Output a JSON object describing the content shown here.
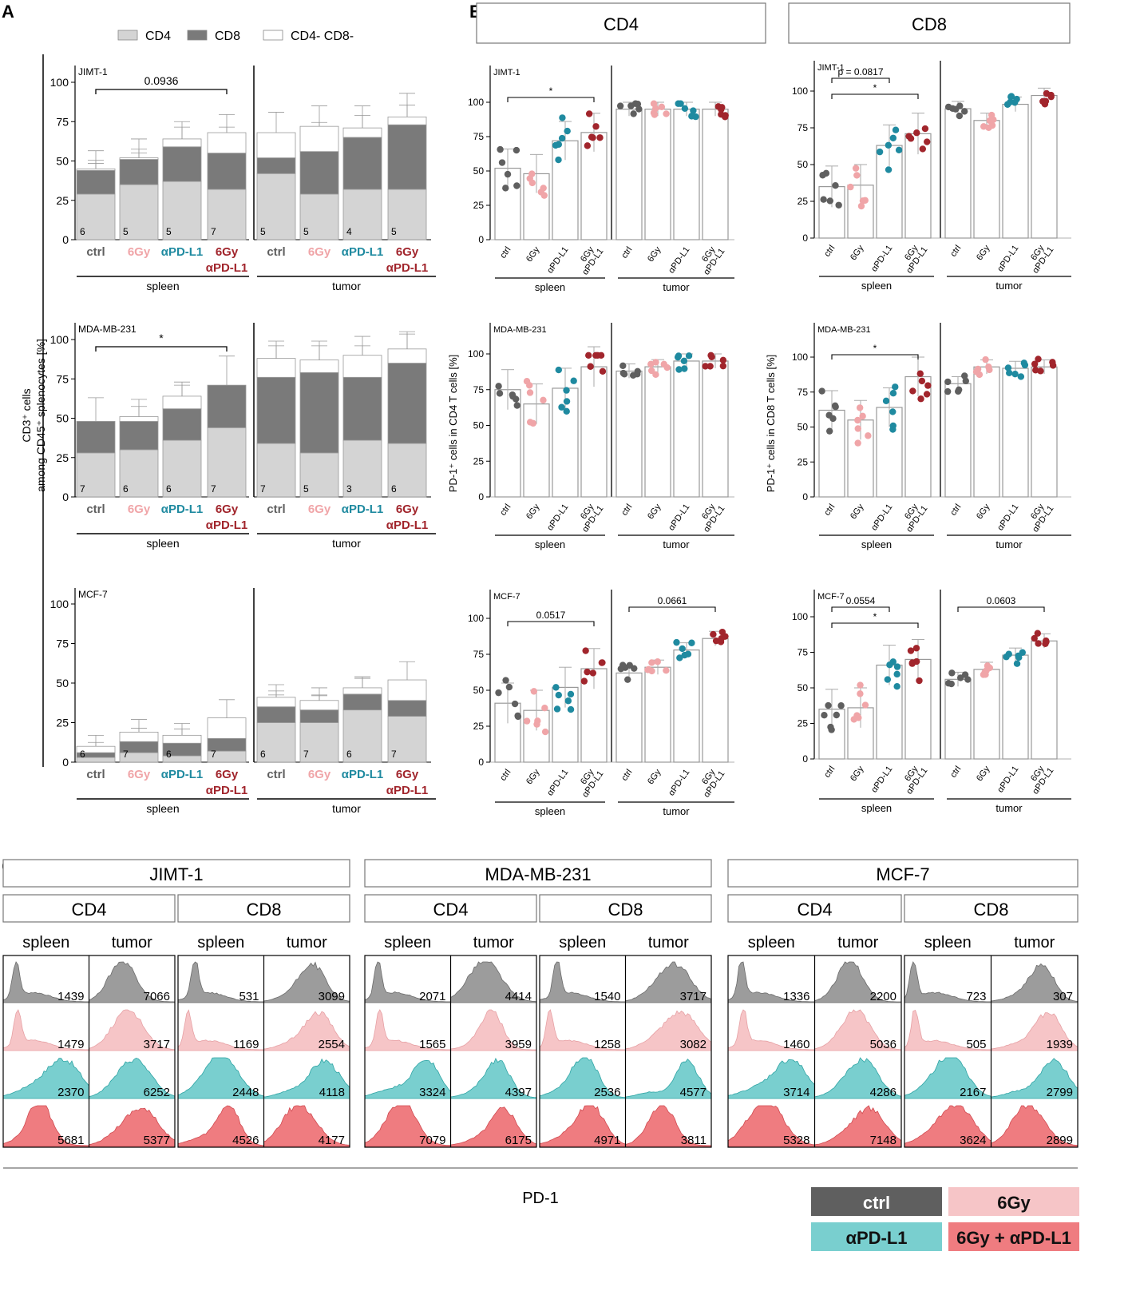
{
  "labels": {
    "A": "A",
    "B": "B",
    "C": "C",
    "spleen": "spleen",
    "tumor": "tumor",
    "pd1": "PD-1"
  },
  "colors": {
    "ctrl": "#5f5f5f",
    "g6": "#f0a5a8",
    "apd": "#1f8aa0",
    "combo": "#a1252c",
    "cd4": "#d4d4d4",
    "cd8": "#7a7a7a",
    "dn": "#ffffff",
    "hist_ctrl": "#9c9c9c",
    "hist_6gy": "#f6c5c7",
    "hist_apd": "#79cfcf",
    "hist_combo": "#ef7c80"
  },
  "groups": [
    "ctrl",
    "6Gy",
    "αPD-L1",
    "6Gy αPD-L1"
  ],
  "panelA": {
    "legend": [
      "CD4",
      "CD8",
      "CD4- CD8-"
    ],
    "ylabel": [
      "CD3⁺ cells",
      "among CD45⁺ splenocytes [%]"
    ],
    "yticks": [
      "0",
      "25",
      "50",
      "75",
      "100"
    ],
    "chart_data": [
      {
        "type": "bar",
        "cell_line": "JIMT-1",
        "stacked": true,
        "categories": [
          "ctrl",
          "6Gy",
          "αPD-L1",
          "6Gy αPD-L1"
        ],
        "series": [
          {
            "name": "CD4",
            "spleen": [
              29,
              35,
              37,
              32
            ],
            "tumor": [
              42,
              29,
              32,
              32
            ]
          },
          {
            "name": "CD8",
            "spleen": [
              15,
              16,
              22,
              23
            ],
            "tumor": [
              10,
              27,
              33,
              41
            ]
          },
          {
            "name": "CD4- CD8-",
            "spleen": [
              1,
              1,
              5,
              13
            ],
            "tumor": [
              16,
              16,
              6,
              5
            ]
          }
        ],
        "n": {
          "spleen": [
            "6",
            "5",
            "5",
            "7"
          ],
          "tumor": [
            "5",
            "5",
            "4",
            "5"
          ]
        },
        "annotation": "0.0936",
        "ylim": [
          0,
          100
        ]
      },
      {
        "type": "bar",
        "cell_line": "MDA-MB-231",
        "stacked": true,
        "categories": [
          "ctrl",
          "6Gy",
          "αPD-L1",
          "6Gy αPD-L1"
        ],
        "series": [
          {
            "name": "CD4",
            "spleen": [
              28,
              30,
              36,
              44
            ],
            "tumor": [
              34,
              28,
              36,
              34
            ]
          },
          {
            "name": "CD8",
            "spleen": [
              20,
              18,
              20,
              27
            ],
            "tumor": [
              42,
              51,
              40,
              51
            ]
          },
          {
            "name": "CD4- CD8-",
            "spleen": [
              0,
              3,
              8,
              0
            ],
            "tumor": [
              12,
              8,
              14,
              9
            ]
          }
        ],
        "n": {
          "spleen": [
            "7",
            "6",
            "6",
            "7"
          ],
          "tumor": [
            "7",
            "5",
            "3",
            "6"
          ]
        },
        "annotation": "*",
        "ylim": [
          0,
          100
        ]
      },
      {
        "type": "bar",
        "cell_line": "MCF-7",
        "stacked": true,
        "categories": [
          "ctrl",
          "6Gy",
          "αPD-L1",
          "6Gy αPD-L1"
        ],
        "series": [
          {
            "name": "CD4",
            "spleen": [
              3,
              6,
              4,
              7
            ],
            "tumor": [
              25,
              25,
              33,
              29
            ]
          },
          {
            "name": "CD8",
            "spleen": [
              3,
              7,
              8,
              8
            ],
            "tumor": [
              10,
              8,
              10,
              10
            ]
          },
          {
            "name": "CD4- CD8-",
            "spleen": [
              4,
              6,
              5,
              13
            ],
            "tumor": [
              6,
              6,
              4,
              13
            ]
          }
        ],
        "n": {
          "spleen": [
            "6",
            "7",
            "6",
            "7"
          ],
          "tumor": [
            "6",
            "7",
            "6",
            "7"
          ]
        },
        "annotation": "",
        "ylim": [
          0,
          100
        ]
      }
    ]
  },
  "panelB": {
    "cd4_header": "CD4",
    "cd8_header": "CD8",
    "ylabel_cd4": "PD-1⁺ cells in CD4 T cells [%]",
    "ylabel_cd8": "PD-1⁺ cells in CD8 T cells [%]",
    "yticks": [
      "0",
      "25",
      "50",
      "75",
      "100"
    ],
    "chart_data": [
      {
        "type": "scatter",
        "cell_line": "JIMT-1",
        "population": "CD4",
        "means": {
          "spleen": [
            52,
            48,
            72,
            78
          ],
          "tumor": [
            95,
            95,
            95,
            95
          ]
        },
        "ann_spleen": "*",
        "ann_tumor": "",
        "ylim": [
          0,
          100
        ]
      },
      {
        "type": "scatter",
        "cell_line": "JIMT-1",
        "population": "CD8",
        "means": {
          "spleen": [
            35,
            36,
            63,
            71
          ],
          "tumor": [
            88,
            80,
            91,
            97
          ]
        },
        "ann_spleen": "*",
        "ann_spleen_2": "p = 0.0817",
        "ann_tumor": "",
        "ylim": [
          0,
          100
        ]
      },
      {
        "type": "scatter",
        "cell_line": "MDA-MB-231",
        "population": "CD4",
        "means": {
          "spleen": [
            75,
            65,
            76,
            91
          ],
          "tumor": [
            88,
            91,
            95,
            95
          ]
        },
        "ann_spleen": "",
        "ann_tumor": "",
        "ylim": [
          0,
          100
        ]
      },
      {
        "type": "scatter",
        "cell_line": "MDA-MB-231",
        "population": "CD8",
        "means": {
          "spleen": [
            62,
            55,
            64,
            86
          ],
          "tumor": [
            81,
            93,
            92,
            93
          ]
        },
        "ann_spleen": "*",
        "ann_tumor": "",
        "ylim": [
          0,
          100
        ]
      },
      {
        "type": "scatter",
        "cell_line": "MCF-7",
        "population": "CD4",
        "means": {
          "spleen": [
            41,
            36,
            52,
            65
          ],
          "tumor": [
            62,
            66,
            78,
            86
          ]
        },
        "ann_spleen": "0.0517",
        "ann_tumor": "0.0661",
        "ylim": [
          0,
          100
        ]
      },
      {
        "type": "scatter",
        "cell_line": "MCF-7",
        "population": "CD8",
        "means": {
          "spleen": [
            35,
            36,
            66,
            70
          ],
          "tumor": [
            56,
            63,
            73,
            83
          ]
        },
        "ann_spleen": "*",
        "ann_spleen_2": "0.0554",
        "ann_tumor": "0.0603",
        "ylim": [
          0,
          100
        ]
      }
    ]
  },
  "panelC": {
    "cell_lines": [
      "JIMT-1",
      "MDA-MB-231",
      "MCF-7"
    ],
    "populations": [
      "CD4",
      "CD8"
    ],
    "mfi": {
      "JIMT-1": {
        "CD4": {
          "spleen": [
            "1439",
            "1479",
            "2370",
            "5681"
          ],
          "tumor": [
            "7066",
            "3717",
            "6252",
            "5377"
          ]
        },
        "CD8": {
          "spleen": [
            "531",
            "1169",
            "2448",
            "4526"
          ],
          "tumor": [
            "3099",
            "2554",
            "4118",
            "4177"
          ]
        }
      },
      "MDA-MB-231": {
        "CD4": {
          "spleen": [
            "2071",
            "1565",
            "3324",
            "7079"
          ],
          "tumor": [
            "4414",
            "3959",
            "4397",
            "6175"
          ]
        },
        "CD8": {
          "spleen": [
            "1540",
            "1258",
            "2536",
            "4971"
          ],
          "tumor": [
            "3717",
            "3082",
            "4577",
            "3811"
          ]
        }
      },
      "MCF-7": {
        "CD4": {
          "spleen": [
            "1336",
            "1460",
            "3714",
            "5328"
          ],
          "tumor": [
            "2200",
            "5036",
            "4286",
            "7148"
          ]
        },
        "CD8": {
          "spleen": [
            "723",
            "505",
            "2167",
            "3624"
          ],
          "tumor": [
            "307",
            "1939",
            "2799",
            "2899"
          ]
        }
      }
    },
    "legend": [
      "ctrl",
      "6Gy",
      "αPD-L1",
      "6Gy + αPD-L1"
    ]
  }
}
